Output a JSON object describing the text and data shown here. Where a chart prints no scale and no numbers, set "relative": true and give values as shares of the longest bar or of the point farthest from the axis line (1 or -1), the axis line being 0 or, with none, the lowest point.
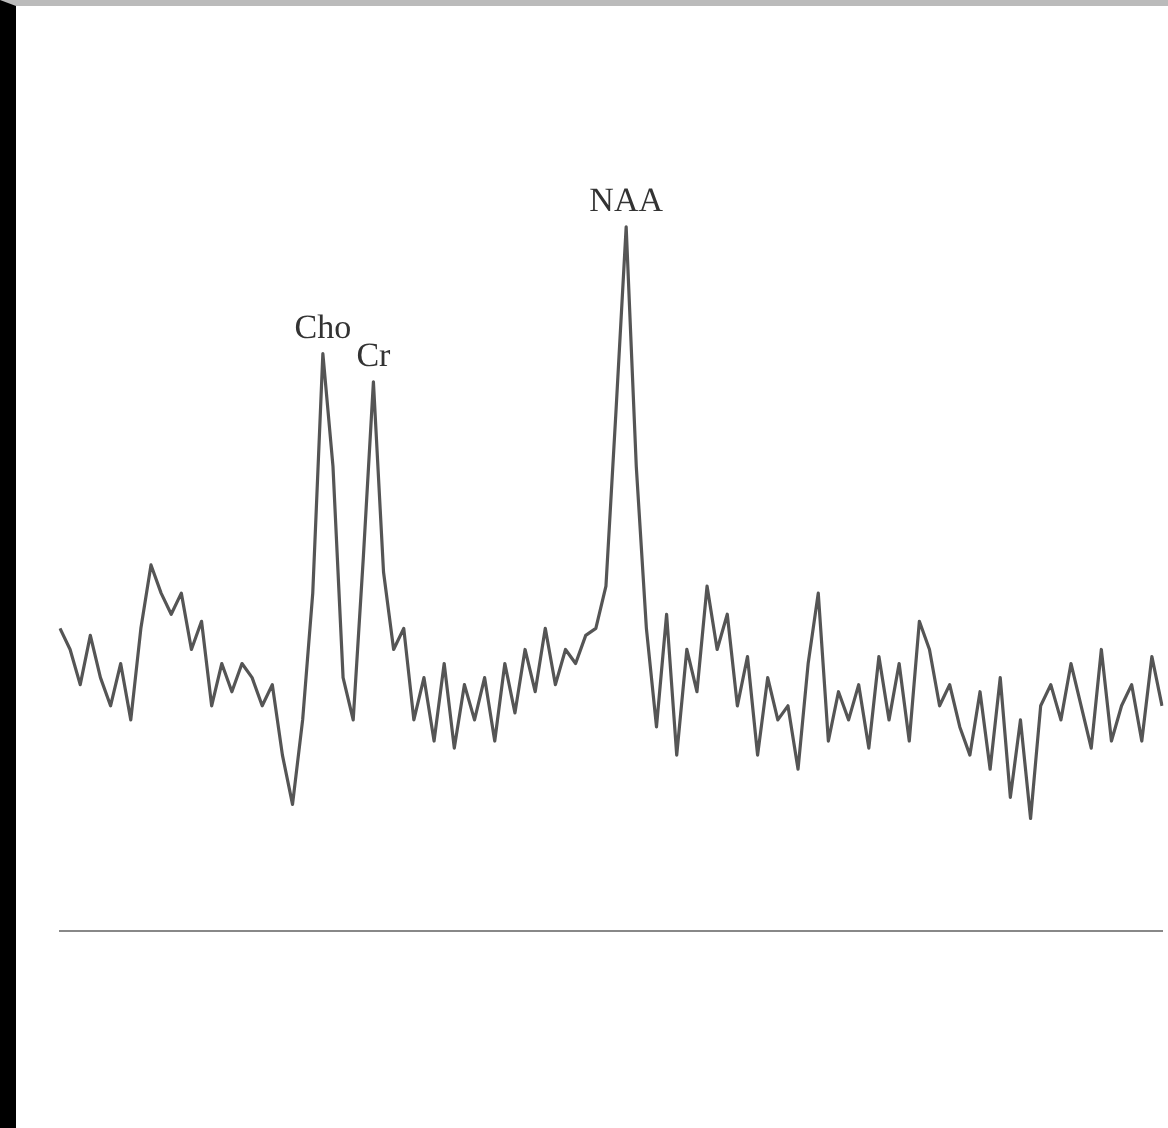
{
  "chart_data": {
    "type": "line",
    "relative": true,
    "categories": [
      null,
      null,
      null,
      null,
      null,
      null,
      null,
      null,
      null,
      null,
      null,
      null,
      null,
      null,
      null,
      null,
      null,
      null,
      null,
      null,
      null,
      null,
      null,
      null,
      null,
      null,
      null,
      null,
      null,
      null,
      null,
      null,
      null,
      null,
      null,
      null,
      null,
      null,
      null,
      null,
      null,
      null,
      null,
      null,
      null,
      null,
      null,
      null,
      null,
      null,
      null,
      null,
      null,
      null,
      null,
      null,
      null,
      null,
      null,
      null,
      null,
      null,
      null,
      null,
      null,
      null,
      null,
      null,
      null,
      null,
      null,
      null,
      null,
      null,
      null,
      null,
      null,
      null,
      null,
      null,
      null,
      null,
      null,
      null,
      null,
      null,
      null,
      null,
      null,
      null,
      null,
      null,
      null,
      null,
      null,
      null,
      null,
      null,
      null,
      null,
      null,
      null,
      null,
      null,
      null,
      null,
      null,
      null,
      null,
      null
    ],
    "series": [
      {
        "color": "#555555",
        "values": [
          0.43,
          0.4,
          0.35,
          0.42,
          0.36,
          0.32,
          0.38,
          0.3,
          0.43,
          0.52,
          0.48,
          0.45,
          0.48,
          0.4,
          0.44,
          0.32,
          0.38,
          0.34,
          0.38,
          0.36,
          0.32,
          0.35,
          0.25,
          0.18,
          0.3,
          0.48,
          0.82,
          0.66,
          0.36,
          0.3,
          0.53,
          0.78,
          0.51,
          0.4,
          0.43,
          0.3,
          0.36,
          0.27,
          0.38,
          0.26,
          0.35,
          0.3,
          0.36,
          0.27,
          0.38,
          0.31,
          0.4,
          0.34,
          0.43,
          0.35,
          0.4,
          0.38,
          0.42,
          0.43,
          0.49,
          0.74,
          1,
          0.66,
          0.43,
          0.29,
          0.45,
          0.25,
          0.4,
          0.34,
          0.49,
          0.4,
          0.45,
          0.32,
          0.39,
          0.25,
          0.36,
          0.3,
          0.32,
          0.23,
          0.38,
          0.48,
          0.27,
          0.34,
          0.3,
          0.35,
          0.26,
          0.39,
          0.3,
          0.38,
          0.27,
          0.44,
          0.4,
          0.32,
          0.35,
          0.29,
          0.25,
          0.34,
          0.23,
          0.36,
          0.19,
          0.3,
          0.16,
          0.32,
          0.35,
          0.3,
          0.38,
          0.32,
          0.26,
          0.4,
          0.27,
          0.32,
          0.35,
          0.27,
          0.39,
          0.32
        ]
      }
    ],
    "annotations": [
      {
        "text": "Cho",
        "y": 0.82
      },
      {
        "text": "Cr",
        "y": 0.78
      },
      {
        "text": "NAA",
        "y": 1
      }
    ],
    "grid": false,
    "marker": "none",
    "line_style": "solid"
  }
}
